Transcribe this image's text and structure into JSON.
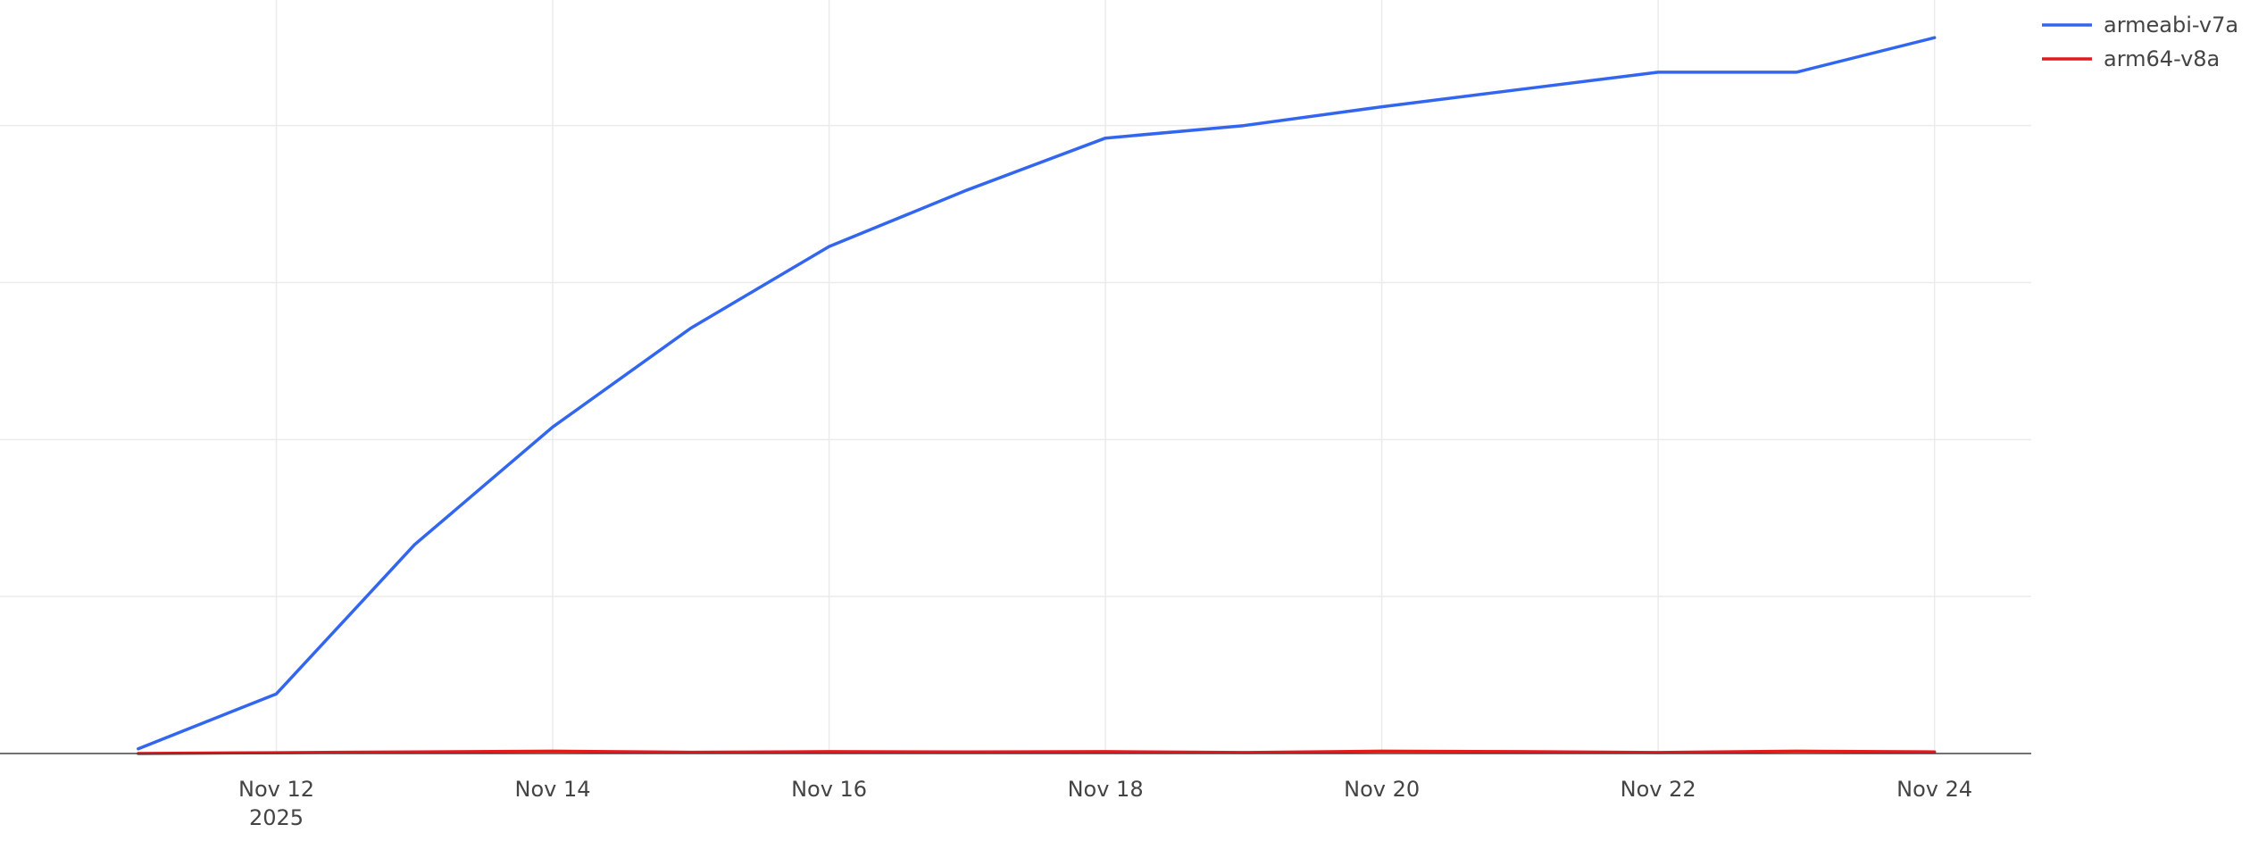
{
  "chart_data": {
    "type": "line",
    "title": "",
    "xlabel": "",
    "ylabel": "",
    "x": [
      "2025-11-11",
      "2025-11-12",
      "2025-11-13",
      "2025-11-14",
      "2025-11-15",
      "2025-11-16",
      "2025-11-17",
      "2025-11-18",
      "2025-11-19",
      "2025-11-20",
      "2025-11-21",
      "2025-11-22",
      "2025-11-23",
      "2025-11-24"
    ],
    "x_ticks": [
      {
        "date": "2025-11-12",
        "label": "Nov 12",
        "sublabel": "2025"
      },
      {
        "date": "2025-11-14",
        "label": "Nov 14",
        "sublabel": ""
      },
      {
        "date": "2025-11-16",
        "label": "Nov 16",
        "sublabel": ""
      },
      {
        "date": "2025-11-18",
        "label": "Nov 18",
        "sublabel": ""
      },
      {
        "date": "2025-11-20",
        "label": "Nov 20",
        "sublabel": ""
      },
      {
        "date": "2025-11-22",
        "label": "Nov 22",
        "sublabel": ""
      },
      {
        "date": "2025-11-24",
        "label": "Nov 24",
        "sublabel": ""
      }
    ],
    "xlim": [
      "2025-11-10",
      "2025-11-24.7"
    ],
    "ylim": [
      0,
      4.8
    ],
    "y_gridlines": [
      1,
      2,
      3,
      4
    ],
    "y_tick_labels_shown": false,
    "grid": true,
    "legend_position": "top-right",
    "series": [
      {
        "name": "armeabi-v7a",
        "color": "#3366ee",
        "values": [
          0.03,
          0.38,
          1.33,
          2.08,
          2.71,
          3.23,
          3.59,
          3.92,
          4.0,
          4.12,
          4.23,
          4.34,
          4.34,
          4.56
        ]
      },
      {
        "name": "arm64-v8a",
        "color": "#e31a1c",
        "values": [
          0.0,
          0.005,
          0.01,
          0.015,
          0.008,
          0.012,
          0.01,
          0.012,
          0.006,
          0.015,
          0.012,
          0.006,
          0.015,
          0.01
        ]
      }
    ]
  }
}
